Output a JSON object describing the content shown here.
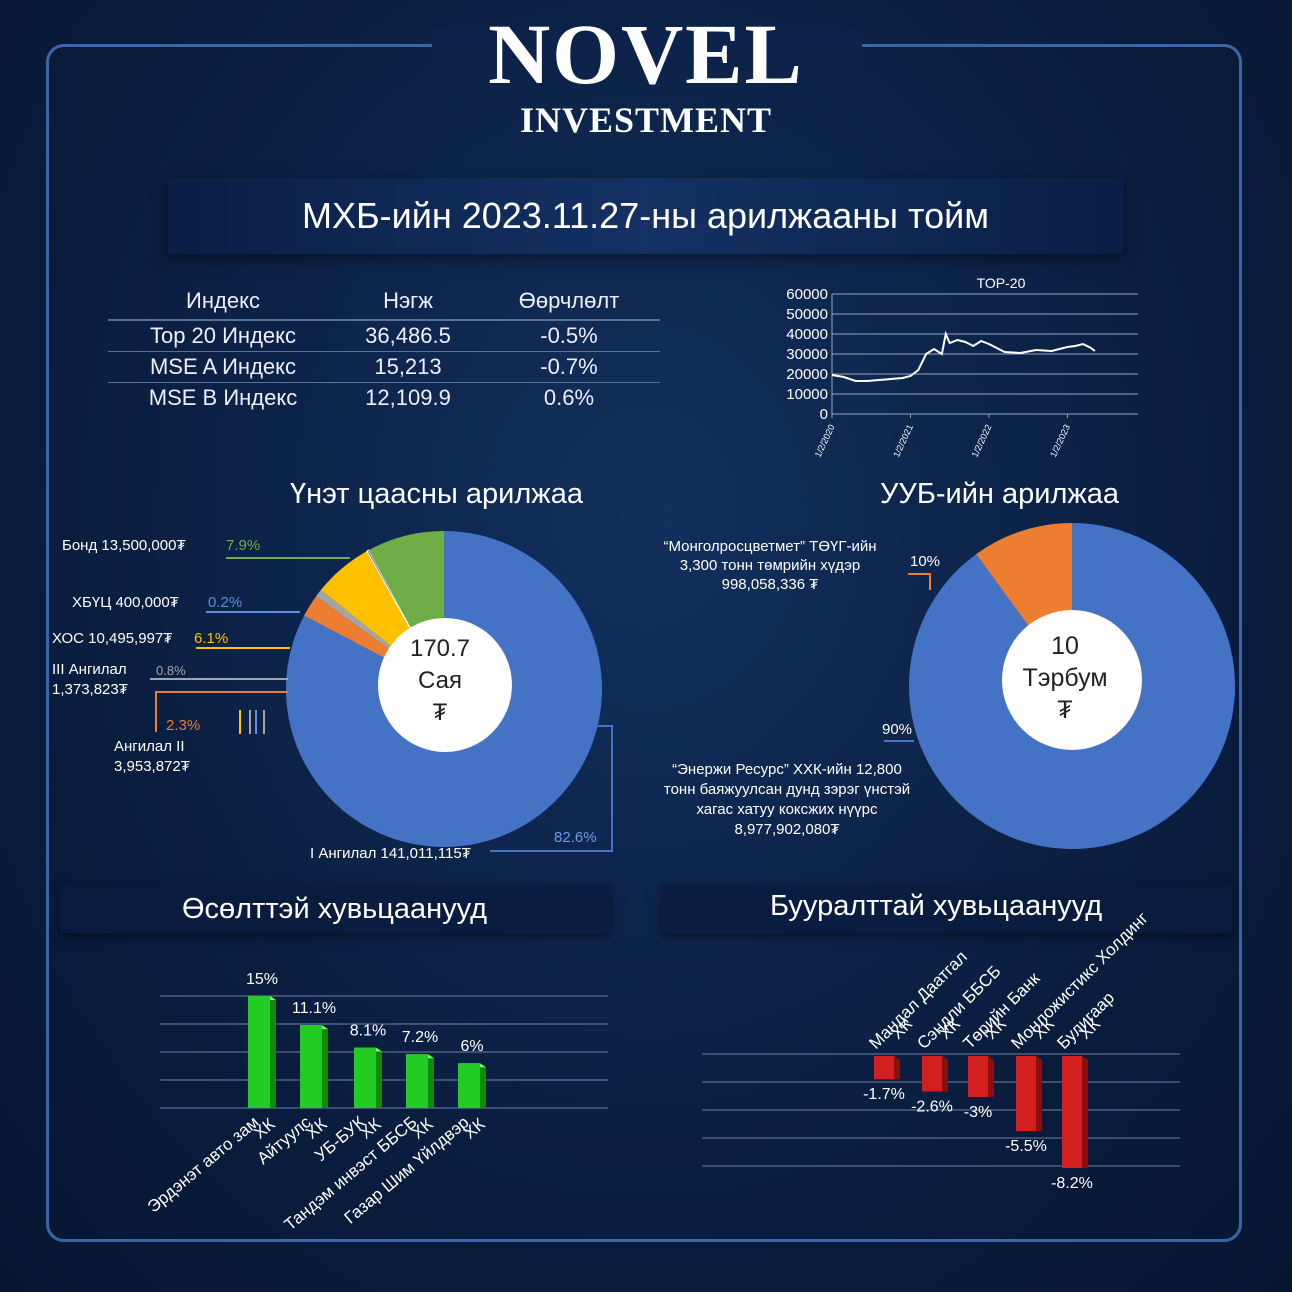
{
  "brand": {
    "name": "NOVEL",
    "tagline": "INVESTMENT"
  },
  "title": "МХБ-ийн 2023.11.27-ны арилжааны тойм",
  "index_table": {
    "headers": [
      "Индекс",
      "Нэгж",
      "Өөрчлөлт"
    ],
    "rows": [
      [
        "Top 20 Индекс",
        "36,486.5",
        "-0.5%"
      ],
      [
        "MSE A Индекс",
        "15,213",
        "-0.7%"
      ],
      [
        "MSE B Индекс",
        "12,109.9",
        "0.6%"
      ]
    ]
  },
  "sections": {
    "securities": "Үнэт цаасны арилжаа",
    "commodity": "УУБ-ийн арилжаа",
    "gainers": "Өсөлттэй хувьцаанууд",
    "losers": "Бууралттай хувьцаанууд"
  },
  "securities_labels": {
    "bond": "Бонд  13,500,000₮",
    "bond_pct": "7.9%",
    "xbuts": "ХБҮЦ 400,000₮",
    "xbuts_pct": "0.2%",
    "xos": "ХОС 10,495,997₮",
    "xos_pct": "6.1%",
    "cat3_line1": "III Ангилал",
    "cat3_line2": "1,373,823₮",
    "cat3_pct": "0.8%",
    "cat2_pct": "2.3%",
    "cat2_line1": "Ангилал II",
    "cat2_line2": "3,953,872₮",
    "cat1": "I Ангилал 141,011,115₮",
    "cat1_pct": "82.6%",
    "center_1": "170.7",
    "center_2": "Сая",
    "center_3": "₮"
  },
  "commodity_labels": {
    "top_1": "“Монголросцветмет” ТӨҮГ-ийн",
    "top_2": "3,300 тонн төмрийн хүдэр",
    "top_3": "998,058,336 ₮",
    "top_pct": "10%",
    "bot_pct": "90%",
    "bot_1": "“Энержи Ресурс” ХХК-ийн 12,800",
    "bot_2": "тонн баяжуулсан дунд зэрэг үнстэй",
    "bot_3": "хагас хатуу коксжих нүүрс",
    "bot_4": "8,977,902,080₮",
    "center_1": "10",
    "center_2": "Тэрбум",
    "center_3": "₮"
  },
  "colors": {
    "blue": "#4472c4",
    "orange": "#ed7d31",
    "gray": "#a5a5a5",
    "yellow": "#ffc000",
    "green": "#70ad47",
    "bar_green": "#22cc22",
    "bar_red": "#d41f1f"
  },
  "chart_data": [
    {
      "type": "line",
      "title": "TOP-20",
      "x_ticks": [
        "1/2/2020",
        "1/2/2021",
        "1/2/2022",
        "1/2/2023"
      ],
      "y_ticks": [
        0,
        10000,
        20000,
        30000,
        40000,
        50000,
        60000
      ],
      "ylim": [
        0,
        60000
      ],
      "x": [
        2020.0,
        2020.15,
        2020.3,
        2020.45,
        2020.6,
        2020.75,
        2020.9,
        2021.0,
        2021.1,
        2021.2,
        2021.3,
        2021.4,
        2021.45,
        2021.5,
        2021.6,
        2021.7,
        2021.8,
        2021.9,
        2022.0,
        2022.2,
        2022.4,
        2022.6,
        2022.8,
        2023.0,
        2023.1,
        2023.2,
        2023.3,
        2023.35
      ],
      "values": [
        19500,
        18500,
        16500,
        16500,
        17000,
        17500,
        18000,
        19000,
        22000,
        30000,
        32500,
        30000,
        40000,
        35500,
        37000,
        36000,
        34000,
        36500,
        35000,
        31000,
        30500,
        32000,
        31500,
        33500,
        34000,
        35000,
        33000,
        31500
      ],
      "grid": true
    },
    {
      "type": "pie",
      "categories": [
        "I Ангилал",
        "Ангилал II",
        "III Ангилал",
        "ХОС",
        "ХБҮЦ",
        "Бонд"
      ],
      "values": [
        82.6,
        2.3,
        0.8,
        6.1,
        0.2,
        7.9
      ],
      "amounts": [
        "141,011,115₮",
        "3,953,872₮",
        "1,373,823₮",
        "10,495,997₮",
        "400,000₮",
        "13,500,000₮"
      ]
    },
    {
      "type": "pie",
      "categories": [
        "“Энержи Ресурс” ХХК",
        "“Монголросцветмет” ТӨҮГ"
      ],
      "values": [
        90,
        10
      ]
    },
    {
      "type": "bar",
      "categories": [
        "Эрдэнэт авто зам ХК",
        "Айтуулс ХК",
        "УБ-БУК ХК",
        "Тандэм инвэст ББСБ ХК",
        "Газар Шим Үйлдвэр ХК"
      ],
      "values": [
        15,
        11.1,
        8.1,
        7.2,
        6
      ],
      "labels": [
        "15%",
        "11.1%",
        "8.1%",
        "7.2%",
        "6%"
      ]
    },
    {
      "type": "bar",
      "categories": [
        "Мандал Даатгал ХК",
        "Сэндли ББСБ ХК",
        "Төрийн Банк ХК",
        "Монложистикс Холдинг ХК",
        "Булигаар ХК"
      ],
      "values": [
        -1.7,
        -2.6,
        -3,
        -5.5,
        -8.2
      ],
      "labels": [
        "-1.7%",
        "-2.6%",
        "-3%",
        "-5.5%",
        "-8.2%"
      ]
    }
  ]
}
